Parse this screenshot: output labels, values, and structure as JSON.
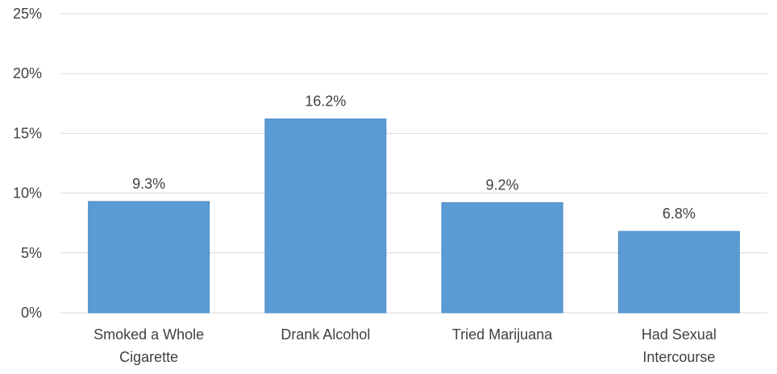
{
  "chart_data": {
    "type": "bar",
    "title": "",
    "xlabel": "",
    "ylabel": "",
    "categories": [
      [
        "Smoked a Whole",
        "Cigarette"
      ],
      [
        "Drank Alcohol"
      ],
      [
        "Tried Marijuana"
      ],
      [
        "Had Sexual",
        "Intercourse"
      ]
    ],
    "values": [
      9.3,
      16.2,
      9.2,
      6.8
    ],
    "data_labels": [
      "9.3%",
      "16.2%",
      "9.2%",
      "6.8%"
    ],
    "ylim": [
      0,
      25
    ],
    "yticks": [
      0,
      5,
      10,
      15,
      20,
      25
    ],
    "ytick_labels": [
      "0%",
      "5%",
      "10%",
      "15%",
      "20%",
      "25%"
    ],
    "grid": true,
    "legend": "none",
    "colors": {
      "bar": "#5b9bd5",
      "bar_edge": "#4a8ac4",
      "grid": "#d9d9d9",
      "text": "#404040"
    }
  }
}
